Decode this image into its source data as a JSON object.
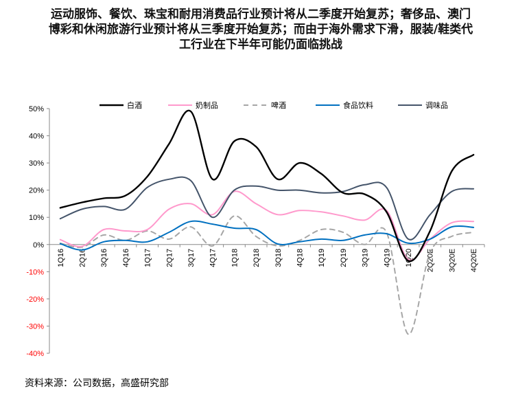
{
  "title": "运动服饰、餐饮、珠宝和耐用消费品行业预计将从二季度开始复苏；奢侈品、澳门\n博彩和休闲旅游行业预计将从三季度开始复苏；而由于海外需求下滑，服装/鞋类代\n工行业在下半年可能仍面临挑战",
  "source": "资料来源：公司数据，高盛研究部",
  "chart_data": {
    "type": "line",
    "title": "运动服饰、餐饮、珠宝和耐用消费品行业预计将从二季度开始复苏；奢侈品、澳门博彩和休闲旅游行业预计将从三季度开始复苏；而由于海外需求下滑，服装/鞋类代工行业在下半年可能仍面临挑战",
    "xlabel": "",
    "ylabel": "",
    "ylim": [
      -40,
      50
    ],
    "yticks": [
      -40,
      -30,
      -20,
      -10,
      0,
      10,
      20,
      30,
      40,
      50
    ],
    "ytick_labels": [
      "-40%",
      "-30%",
      "-20%",
      "-10%",
      "0%",
      "10%",
      "20%",
      "30%",
      "40%",
      "50%"
    ],
    "negative_tick_color": "#ff0000",
    "grid": false,
    "legend_position": "top",
    "categories": [
      "1Q16",
      "2Q16",
      "3Q16",
      "4Q16",
      "1Q17",
      "2Q17",
      "3Q17",
      "4Q17",
      "1Q18",
      "2Q18",
      "3Q18",
      "4Q18",
      "1Q19",
      "2Q19",
      "3Q19",
      "4Q19",
      "1Q20",
      "2Q20E",
      "3Q20E",
      "4Q20E"
    ],
    "series": [
      {
        "name": "白酒",
        "color": "#000000",
        "dash": "solid",
        "values": [
          13.5,
          15.5,
          17,
          18,
          25,
          37,
          49,
          24,
          38,
          36,
          24,
          30,
          26,
          19,
          18.5,
          12,
          -6,
          5,
          27,
          33
        ]
      },
      {
        "name": "奶制品",
        "color": "#ff99cc",
        "dash": "solid",
        "values": [
          1.8,
          -0.7,
          5.5,
          5,
          5.5,
          13,
          15,
          11,
          19.5,
          15,
          11,
          12.5,
          12,
          10.5,
          9,
          12.5,
          -5.5,
          2,
          8,
          8.5
        ]
      },
      {
        "name": "啤酒",
        "color": "#a6a6a6",
        "dash": "dashed",
        "values": [
          0.5,
          -1,
          3.5,
          1.5,
          5,
          2,
          6.5,
          -0.5,
          10.5,
          3,
          -0.5,
          1.5,
          5.5,
          4.5,
          0,
          4.5,
          -33,
          -3,
          3,
          4.5
        ]
      },
      {
        "name": "食品饮料",
        "color": "#0070c0",
        "dash": "solid",
        "values": [
          0.3,
          -2,
          1,
          1.5,
          1,
          4.5,
          8.5,
          7.5,
          6,
          5.5,
          0.2,
          1,
          2,
          1.5,
          3.5,
          4,
          0.5,
          2,
          6.5,
          6.3
        ]
      },
      {
        "name": "调味品",
        "color": "#44546a",
        "dash": "solid",
        "values": [
          9.5,
          13,
          14,
          13,
          21,
          24,
          23.5,
          10,
          20,
          21.5,
          20,
          20,
          19,
          19.5,
          22,
          21,
          2,
          11,
          19.5,
          20.5
        ]
      }
    ]
  }
}
